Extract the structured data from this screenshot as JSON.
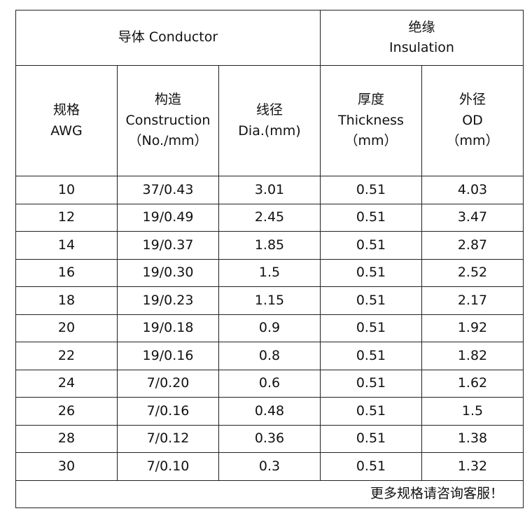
{
  "header": {
    "groups": [
      {
        "lines": [
          "导体 Conductor"
        ],
        "span": 3
      },
      {
        "lines": [
          "绝缘",
          "Insulation"
        ],
        "span": 2
      }
    ],
    "columns": [
      {
        "lines": [
          "规格",
          "AWG"
        ]
      },
      {
        "lines": [
          "构造",
          "Construction",
          "（No./mm）"
        ]
      },
      {
        "lines": [
          "线径",
          "Dia.(mm)"
        ]
      },
      {
        "lines": [
          "厚度",
          "Thickness",
          "（mm）"
        ]
      },
      {
        "lines": [
          "外径",
          "OD",
          "（mm）"
        ]
      }
    ]
  },
  "table": {
    "rows": [
      [
        "10",
        "37/0.43",
        "3.01",
        "0.51",
        "4.03"
      ],
      [
        "12",
        "19/0.49",
        "2.45",
        "0.51",
        "3.47"
      ],
      [
        "14",
        "19/0.37",
        "1.85",
        "0.51",
        "2.87"
      ],
      [
        "16",
        "19/0.30",
        "1.5",
        "0.51",
        "2.52"
      ],
      [
        "18",
        "19/0.23",
        "1.15",
        "0.51",
        "2.17"
      ],
      [
        "20",
        "19/0.18",
        "0.9",
        "0.51",
        "1.92"
      ],
      [
        "22",
        "19/0.16",
        "0.8",
        "0.51",
        "1.82"
      ],
      [
        "24",
        "7/0.20",
        "0.6",
        "0.51",
        "1.62"
      ],
      [
        "26",
        "7/0.16",
        "0.48",
        "0.51",
        "1.5"
      ],
      [
        "28",
        "7/0.12",
        "0.36",
        "0.51",
        "1.38"
      ],
      [
        "30",
        "7/0.10",
        "0.3",
        "0.51",
        "1.32"
      ]
    ]
  },
  "footer": "更多规格请咨询客服！"
}
